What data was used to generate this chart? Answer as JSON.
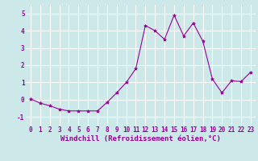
{
  "x": [
    0,
    1,
    2,
    3,
    4,
    5,
    6,
    7,
    8,
    9,
    10,
    11,
    12,
    13,
    14,
    15,
    16,
    17,
    18,
    19,
    20,
    21,
    22,
    23
  ],
  "y": [
    0.05,
    -0.2,
    -0.35,
    -0.55,
    -0.65,
    -0.65,
    -0.65,
    -0.65,
    -0.15,
    0.4,
    1.0,
    1.8,
    4.3,
    4.0,
    3.5,
    4.9,
    3.7,
    4.45,
    3.4,
    1.2,
    0.4,
    1.1,
    1.05,
    1.6
  ],
  "line_color": "#990099",
  "marker": "*",
  "marker_size": 3,
  "bg_color": "#cce8e8",
  "grid_color": "#ffffff",
  "xlabel": "Windchill (Refroidissement éolien,°C)",
  "xlabel_color": "#990099",
  "tick_color": "#990099",
  "ylim": [
    -1.5,
    5.5
  ],
  "xlim": [
    -0.5,
    23.5
  ],
  "yticks": [
    -1,
    0,
    1,
    2,
    3,
    4,
    5
  ],
  "xticks": [
    0,
    1,
    2,
    3,
    4,
    5,
    6,
    7,
    8,
    9,
    10,
    11,
    12,
    13,
    14,
    15,
    16,
    17,
    18,
    19,
    20,
    21,
    22,
    23
  ],
  "xtick_labels": [
    "0",
    "1",
    "2",
    "3",
    "4",
    "5",
    "6",
    "7",
    "8",
    "9",
    "10",
    "11",
    "12",
    "13",
    "14",
    "15",
    "16",
    "17",
    "18",
    "19",
    "20",
    "21",
    "22",
    "23"
  ],
  "tick_fontsize": 5.5,
  "xlabel_fontsize": 6.5
}
